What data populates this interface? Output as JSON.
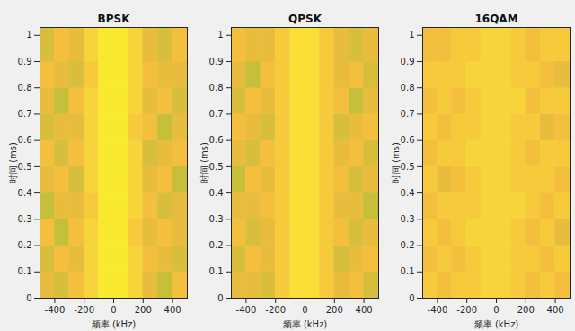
{
  "chart_data": [
    {
      "type": "heatmap",
      "title": "BPSK",
      "x_label": "频率 (kHz)",
      "y_label": "时间 (ms)",
      "xlim": [
        -500,
        500
      ],
      "ylim": [
        0,
        1.03
      ],
      "xticks": [
        -400,
        -200,
        0,
        200,
        400
      ],
      "yticks": [
        0,
        0.1,
        0.2,
        0.3,
        0.4,
        0.5,
        0.6,
        0.7,
        0.8,
        0.9,
        1
      ],
      "x_edges": [
        -500,
        -400,
        -300,
        -200,
        -100,
        0,
        100,
        200,
        300,
        400,
        500
      ],
      "y_edges": [
        0,
        0.1,
        0.2,
        0.3,
        0.4,
        0.5,
        0.6,
        0.7,
        0.8,
        0.9,
        1.03
      ],
      "zlim": [
        -16,
        0
      ],
      "cells": [
        [
          -6,
          -7,
          -5,
          -3,
          -1,
          -1,
          -3,
          -6,
          -8,
          -5
        ],
        [
          -7,
          -5,
          -6,
          -3,
          -1,
          -1,
          -3,
          -5,
          -6,
          -7
        ],
        [
          -5,
          -8,
          -5,
          -3,
          -1,
          -1,
          -4,
          -6,
          -5,
          -6
        ],
        [
          -8,
          -6,
          -6,
          -4,
          -1,
          -1,
          -3,
          -5,
          -7,
          -6
        ],
        [
          -6,
          -5,
          -7,
          -3,
          -1,
          -1,
          -3,
          -6,
          -5,
          -8
        ],
        [
          -5,
          -7,
          -5,
          -3,
          -1,
          -1,
          -3,
          -7,
          -6,
          -5
        ],
        [
          -7,
          -6,
          -6,
          -3,
          -1,
          -1,
          -4,
          -5,
          -8,
          -6
        ],
        [
          -6,
          -8,
          -5,
          -3,
          -1,
          -1,
          -3,
          -6,
          -5,
          -7
        ],
        [
          -5,
          -6,
          -7,
          -4,
          -1,
          -1,
          -3,
          -5,
          -6,
          -6
        ],
        [
          -7,
          -5,
          -6,
          -3,
          -1,
          -1,
          -3,
          -6,
          -7,
          -5
        ]
      ]
    },
    {
      "type": "heatmap",
      "title": "QPSK",
      "x_label": "频率 (kHz)",
      "y_label": "时间 (ms)",
      "xlim": [
        -500,
        500
      ],
      "ylim": [
        0,
        1.03
      ],
      "xticks": [
        -400,
        -200,
        0,
        200,
        400
      ],
      "yticks": [
        0,
        0.1,
        0.2,
        0.3,
        0.4,
        0.5,
        0.6,
        0.7,
        0.8,
        0.9,
        1
      ],
      "x_edges": [
        -500,
        -400,
        -300,
        -200,
        -100,
        0,
        100,
        200,
        300,
        400,
        500
      ],
      "y_edges": [
        0,
        0.1,
        0.2,
        0.3,
        0.4,
        0.5,
        0.6,
        0.7,
        0.8,
        0.9,
        1.03
      ],
      "zlim": [
        -16,
        0
      ],
      "cells": [
        [
          -6,
          -6,
          -7,
          -4,
          -2,
          -2,
          -4,
          -6,
          -5,
          -7
        ],
        [
          -7,
          -5,
          -6,
          -4,
          -2,
          -2,
          -4,
          -7,
          -6,
          -5
        ],
        [
          -5,
          -7,
          -6,
          -4,
          -2,
          -2,
          -4,
          -5,
          -7,
          -6
        ],
        [
          -6,
          -6,
          -5,
          -4,
          -2,
          -2,
          -4,
          -6,
          -6,
          -8
        ],
        [
          -8,
          -5,
          -6,
          -4,
          -2,
          -2,
          -4,
          -5,
          -7,
          -6
        ],
        [
          -6,
          -7,
          -5,
          -4,
          -2,
          -2,
          -4,
          -6,
          -5,
          -7
        ],
        [
          -5,
          -6,
          -7,
          -4,
          -2,
          -2,
          -4,
          -7,
          -6,
          -5
        ],
        [
          -7,
          -5,
          -6,
          -4,
          -2,
          -2,
          -4,
          -5,
          -8,
          -6
        ],
        [
          -6,
          -8,
          -5,
          -4,
          -2,
          -2,
          -4,
          -6,
          -5,
          -7
        ],
        [
          -5,
          -6,
          -6,
          -4,
          -2,
          -2,
          -4,
          -6,
          -7,
          -6
        ]
      ]
    },
    {
      "type": "heatmap",
      "title": "16QAM",
      "x_label": "频率 (kHz)",
      "y_label": "时间 (ms)",
      "xlim": [
        -500,
        500
      ],
      "ylim": [
        0,
        1.03
      ],
      "xticks": [
        -400,
        -200,
        0,
        200,
        400
      ],
      "yticks": [
        0,
        0.1,
        0.2,
        0.3,
        0.4,
        0.5,
        0.6,
        0.7,
        0.8,
        0.9,
        1
      ],
      "x_edges": [
        -500,
        -400,
        -300,
        -200,
        -100,
        0,
        100,
        200,
        300,
        400,
        500
      ],
      "y_edges": [
        0,
        0.1,
        0.2,
        0.3,
        0.4,
        0.5,
        0.6,
        0.7,
        0.8,
        0.9,
        1.03
      ],
      "zlim": [
        -16,
        0
      ],
      "cells": [
        [
          -4,
          -5,
          -4,
          -4,
          -3,
          -3,
          -4,
          -5,
          -4,
          -5
        ],
        [
          -5,
          -4,
          -5,
          -4,
          -3,
          -3,
          -4,
          -4,
          -5,
          -4
        ],
        [
          -4,
          -5,
          -4,
          -3,
          -3,
          -3,
          -4,
          -5,
          -4,
          -6
        ],
        [
          -5,
          -4,
          -4,
          -4,
          -3,
          -3,
          -3,
          -4,
          -5,
          -4
        ],
        [
          -4,
          -6,
          -5,
          -4,
          -3,
          -3,
          -4,
          -4,
          -4,
          -5
        ],
        [
          -5,
          -4,
          -4,
          -3,
          -3,
          -3,
          -4,
          -5,
          -4,
          -4
        ],
        [
          -4,
          -5,
          -4,
          -4,
          -3,
          -3,
          -4,
          -4,
          -6,
          -5
        ],
        [
          -5,
          -4,
          -5,
          -4,
          -3,
          -3,
          -3,
          -5,
          -4,
          -4
        ],
        [
          -4,
          -4,
          -4,
          -3,
          -3,
          -3,
          -4,
          -4,
          -5,
          -6
        ],
        [
          -5,
          -5,
          -4,
          -4,
          -3,
          -3,
          -4,
          -5,
          -4,
          -4
        ]
      ]
    }
  ]
}
